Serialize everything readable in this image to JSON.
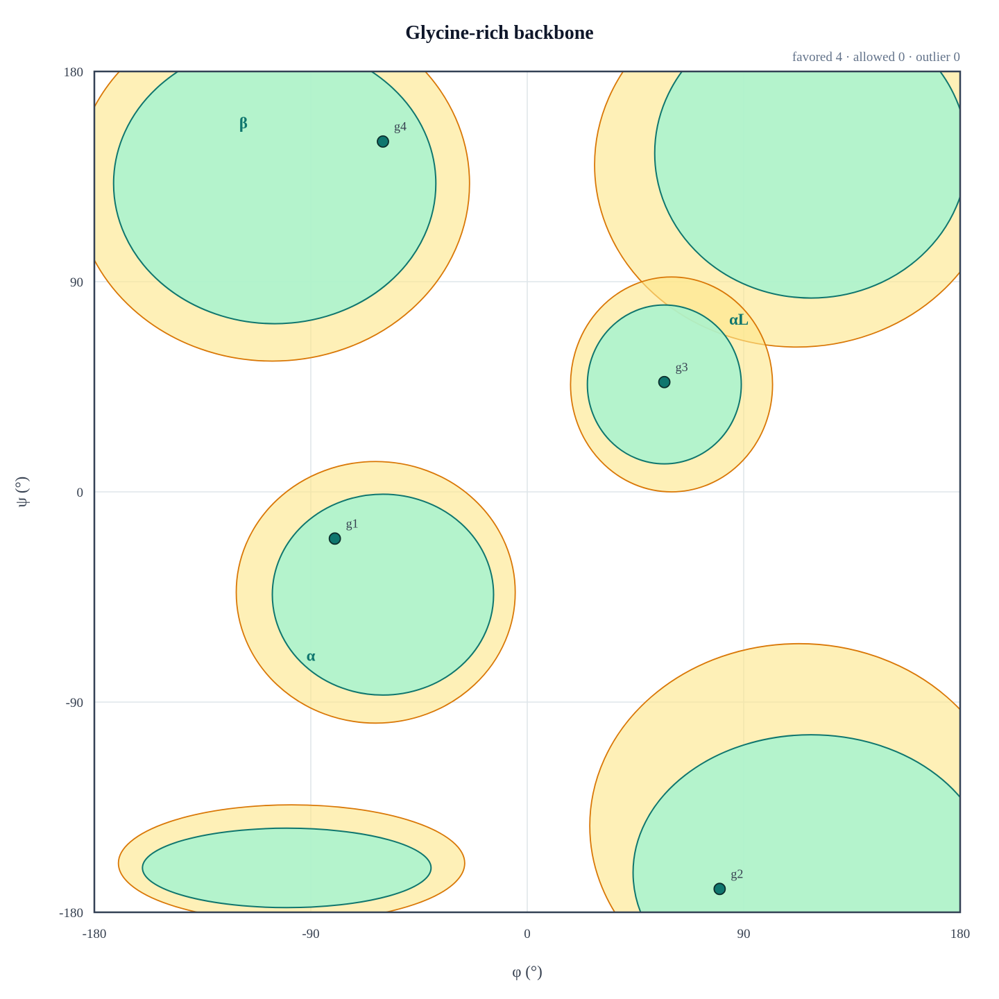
{
  "chart_data": {
    "type": "scatter",
    "title": "Glycine-rich backbone",
    "summary": "favored 4 · allowed 0 · outlier 0",
    "xlabel": "φ (°)",
    "ylabel": "ψ (°)",
    "xlim": [
      -180,
      180
    ],
    "ylim": [
      -180,
      180
    ],
    "xticks": [
      "-180",
      "-90",
      "0",
      "90",
      "180"
    ],
    "yticks": [
      "180",
      "90",
      "0",
      "-90",
      "-180"
    ],
    "grid": true,
    "colors": {
      "favored_fill": "#a7f3d0",
      "favored_edge": "#0f766e",
      "allowed_fill": "#fde68a",
      "allowed_edge": "#d97706",
      "point": "#0f766e"
    },
    "regions": [
      {
        "label": "β",
        "favored": {
          "cx": -105,
          "cy": 132,
          "rx": 67,
          "ry": 60
        },
        "allowed": {
          "cx": -106,
          "cy": 132,
          "rx": 82,
          "ry": 76
        }
      },
      {
        "label": "",
        "favored": {
          "cx": 118,
          "cy": 145,
          "rx": 65,
          "ry": 62
        },
        "allowed": {
          "cx": 112,
          "cy": 140,
          "rx": 84,
          "ry": 78
        }
      },
      {
        "label": "αL",
        "favored": {
          "cx": 57,
          "cy": 46,
          "rx": 32,
          "ry": 34
        },
        "allowed": {
          "cx": 60,
          "cy": 46,
          "rx": 42,
          "ry": 46
        }
      },
      {
        "label": "α",
        "favored": {
          "cx": -60,
          "cy": -44,
          "rx": 46,
          "ry": 43
        },
        "allowed": {
          "cx": -63,
          "cy": -43,
          "rx": 58,
          "ry": 56
        }
      },
      {
        "label": "",
        "favored": {
          "cx": 118,
          "cy": -163,
          "rx": 74,
          "ry": 59
        },
        "allowed": {
          "cx": 113,
          "cy": -143,
          "rx": 87,
          "ry": 78
        }
      },
      {
        "label": "",
        "favored": {
          "cx": -100,
          "cy": -161,
          "rx": 60,
          "ry": 17
        },
        "allowed": {
          "cx": -98,
          "cy": -159,
          "rx": 72,
          "ry": 25
        }
      }
    ],
    "region_labels": [
      {
        "text": "β",
        "x": -118,
        "y": 158
      },
      {
        "text": "αL",
        "x": 88,
        "y": 74
      },
      {
        "text": "α",
        "x": -90,
        "y": -70
      }
    ],
    "points": [
      {
        "label": "g1",
        "phi": -80,
        "psi": -20,
        "class": "favored"
      },
      {
        "label": "g2",
        "phi": 80,
        "psi": -170,
        "class": "favored"
      },
      {
        "label": "g3",
        "phi": 57,
        "psi": 47,
        "class": "favored"
      },
      {
        "label": "g4",
        "phi": -60,
        "psi": 150,
        "class": "favored"
      }
    ]
  }
}
